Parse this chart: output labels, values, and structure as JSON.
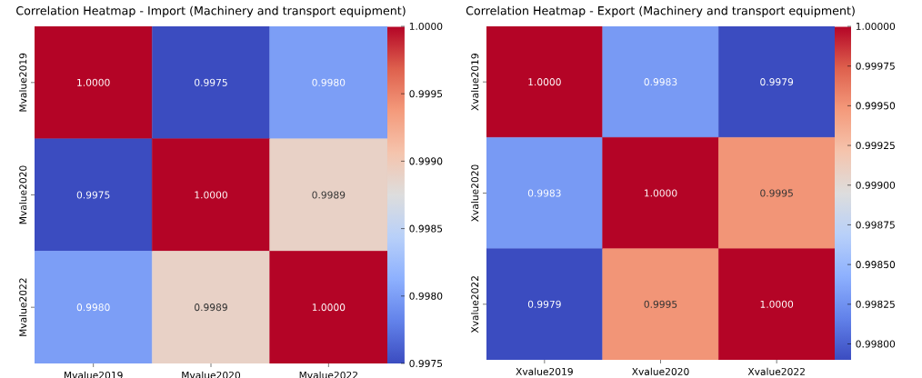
{
  "chart_data": [
    {
      "type": "heatmap",
      "title": "Correlation Heatmap - Import (Machinery and transport equipment)",
      "categories": [
        "Mvalue2019",
        "Mvalue2020",
        "Mvalue2022"
      ],
      "y_categories": [
        "Mvalue2019",
        "Mvalue2020",
        "Mvalue2022"
      ],
      "cells": [
        [
          1.0,
          0.9975,
          0.998
        ],
        [
          0.9975,
          1.0,
          0.9989
        ],
        [
          0.998,
          0.9989,
          1.0
        ]
      ],
      "cell_labels": [
        [
          "1.0000",
          "0.9975",
          "0.9980"
        ],
        [
          "0.9975",
          "1.0000",
          "0.9989"
        ],
        [
          "0.9980",
          "0.9989",
          "1.0000"
        ]
      ],
      "clim": [
        0.9975,
        1.0
      ],
      "cticks": [
        {
          "value": 0.9975,
          "label": "0.9975"
        },
        {
          "value": 0.998,
          "label": "0.9980"
        },
        {
          "value": 0.9985,
          "label": "0.9985"
        },
        {
          "value": 0.999,
          "label": "0.9990"
        },
        {
          "value": 0.9995,
          "label": "0.9995"
        },
        {
          "value": 1.0,
          "label": "1.0000"
        }
      ]
    },
    {
      "type": "heatmap",
      "title": "Correlation Heatmap - Export (Machinery and transport equipment)",
      "categories": [
        "Xvalue2019",
        "Xvalue2020",
        "Xvalue2022"
      ],
      "y_categories": [
        "Xvalue2019",
        "Xvalue2020",
        "Xvalue2022"
      ],
      "cells": [
        [
          1.0,
          0.9983,
          0.9979
        ],
        [
          0.9983,
          1.0,
          0.9995
        ],
        [
          0.9979,
          0.9995,
          1.0
        ]
      ],
      "cell_labels": [
        [
          "1.0000",
          "0.9983",
          "0.9979"
        ],
        [
          "0.9983",
          "1.0000",
          "0.9995"
        ],
        [
          "0.9979",
          "0.9995",
          "1.0000"
        ]
      ],
      "clim": [
        0.9979,
        1.0
      ],
      "cticks": [
        {
          "value": 0.998,
          "label": "0.99800"
        },
        {
          "value": 0.99825,
          "label": "0.99825"
        },
        {
          "value": 0.9985,
          "label": "0.99850"
        },
        {
          "value": 0.99875,
          "label": "0.99875"
        },
        {
          "value": 0.999,
          "label": "0.99900"
        },
        {
          "value": 0.99925,
          "label": "0.99925"
        },
        {
          "value": 0.9995,
          "label": "0.99950"
        },
        {
          "value": 0.99975,
          "label": "0.99975"
        },
        {
          "value": 1.0,
          "label": "1.00000"
        }
      ]
    }
  ]
}
